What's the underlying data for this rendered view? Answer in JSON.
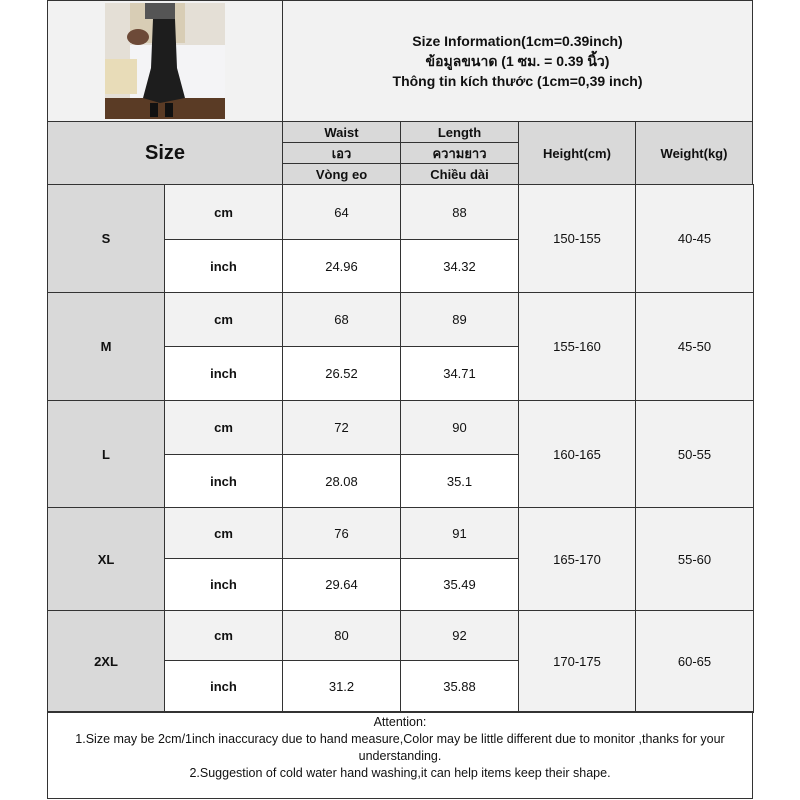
{
  "title": {
    "line1": "Size Information(1cm=0.39inch)",
    "line2": "ข้อมูลขนาด (1 ซม. = 0.39 นิ้ว)",
    "line3": "Thông tin kích thước (1cm=0,39 inch)"
  },
  "header": {
    "size": "Size",
    "waist": [
      "Waist",
      "เอว",
      "Vòng eo"
    ],
    "length": [
      "Length",
      "ความยาว",
      "Chiều dài"
    ],
    "height": "Height(cm)",
    "weight": "Weight(kg)"
  },
  "rows": [
    {
      "size": "S",
      "cm_label": "cm",
      "inch_label": "inch",
      "waist_cm": "64",
      "length_cm": "88",
      "waist_inch": "24.96",
      "length_inch": "34.32",
      "height": "150-155",
      "weight": "40-45"
    },
    {
      "size": "M",
      "cm_label": "cm",
      "inch_label": "inch",
      "waist_cm": "68",
      "length_cm": "89",
      "waist_inch": "26.52",
      "length_inch": "34.71",
      "height": "155-160",
      "weight": "45-50"
    },
    {
      "size": "L",
      "cm_label": "cm",
      "inch_label": "inch",
      "waist_cm": "72",
      "length_cm": "90",
      "waist_inch": "28.08",
      "length_inch": "35.1",
      "height": "160-165",
      "weight": "50-55"
    },
    {
      "size": "XL",
      "cm_label": "cm",
      "inch_label": "inch",
      "waist_cm": "76",
      "length_cm": "91",
      "waist_inch": "29.64",
      "length_inch": "35.49",
      "height": "165-170",
      "weight": "55-60"
    },
    {
      "size": "2XL",
      "cm_label": "cm",
      "inch_label": "inch",
      "waist_cm": "80",
      "length_cm": "92",
      "waist_inch": "31.2",
      "length_inch": "35.88",
      "height": "170-175",
      "weight": "60-65"
    }
  ],
  "attention": {
    "heading": "Attention:",
    "note1": "1.Size may be 2cm/1inch inaccuracy due to hand measure,Color may be little different due to monitor ,thanks for your understanding.",
    "note2": "2.Suggestion of cold water hand washing,it can help items keep their shape."
  }
}
